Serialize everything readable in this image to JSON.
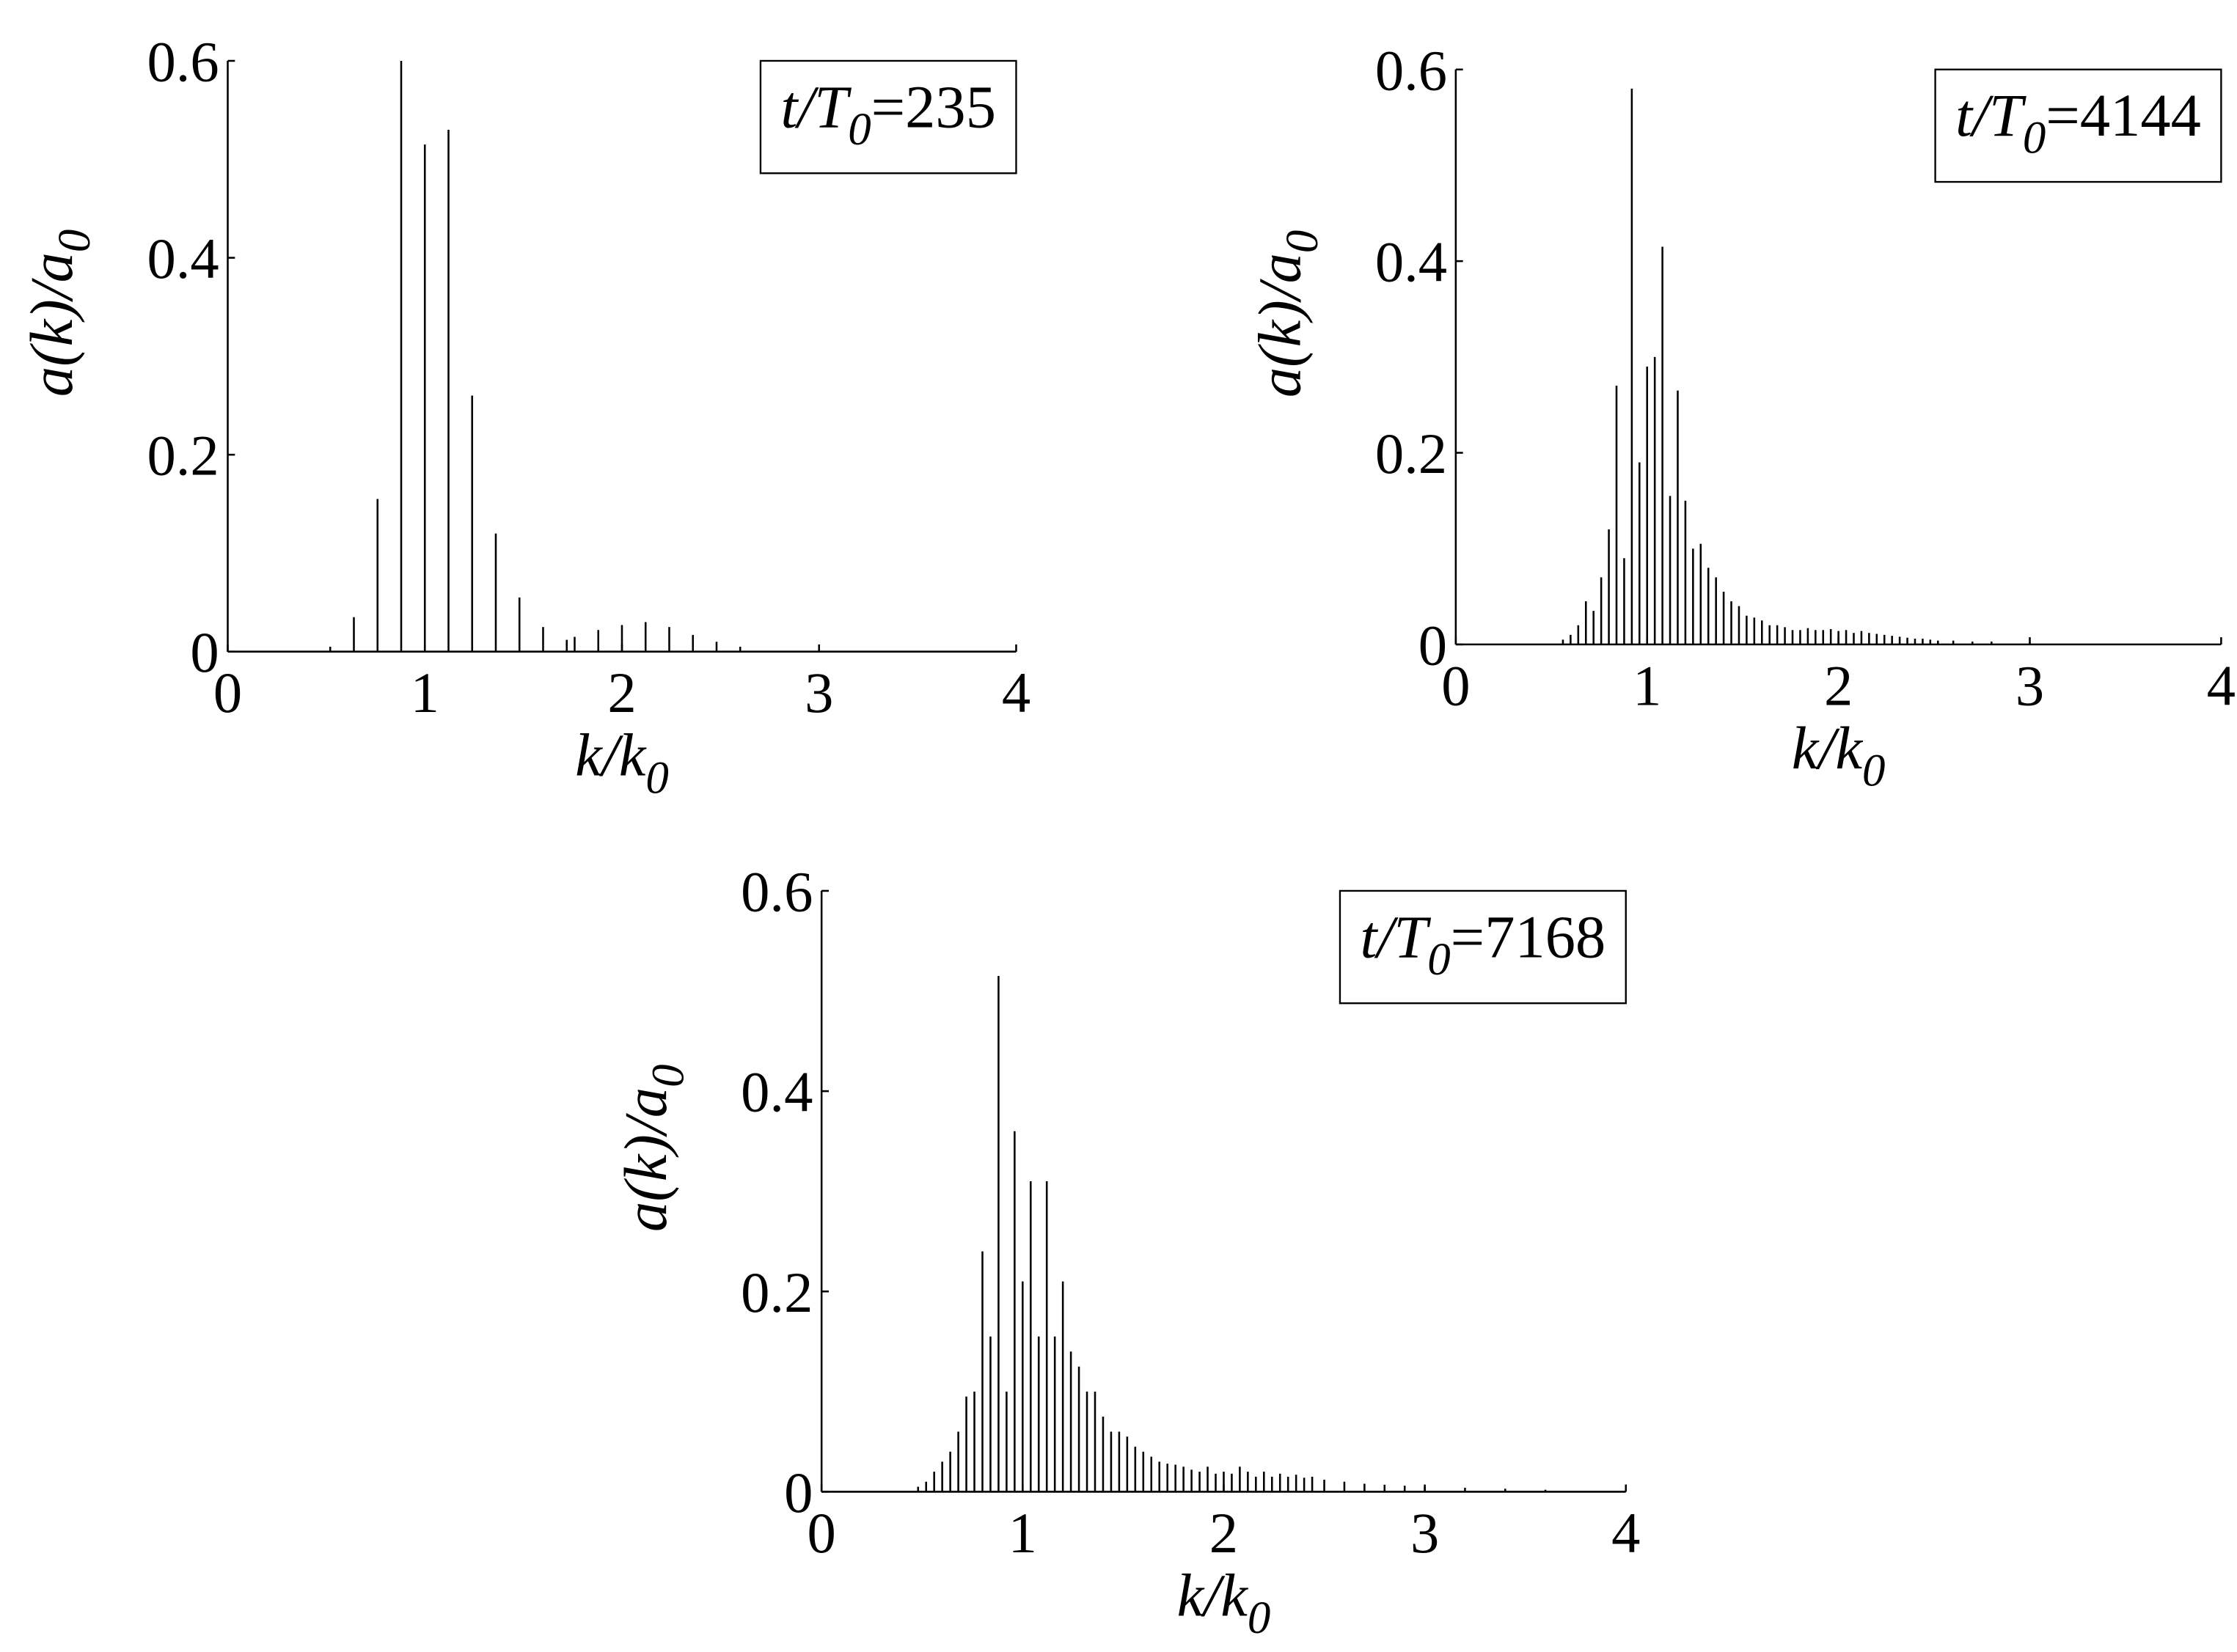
{
  "chart_data": [
    {
      "type": "stem",
      "annotation": [
        "t/T",
        "0",
        "=235"
      ],
      "xlabel": [
        "k/k",
        "0"
      ],
      "ylabel": [
        "a(k)/a",
        "0"
      ],
      "x": [
        0.52,
        0.64,
        0.76,
        0.88,
        1.0,
        1.12,
        1.24,
        1.36,
        1.48,
        1.6,
        1.72,
        1.76,
        1.88,
        2.0,
        2.12,
        2.24,
        2.36,
        2.48,
        2.6,
        3.0
      ],
      "values": [
        0.005,
        0.035,
        0.155,
        0.6,
        0.515,
        0.53,
        0.26,
        0.12,
        0.055,
        0.025,
        0.012,
        0.015,
        0.022,
        0.027,
        0.03,
        0.025,
        0.017,
        0.01,
        0.005,
        0.003
      ],
      "color": "#000000",
      "xlim": [
        0,
        4
      ],
      "ylim": [
        0,
        0.6
      ],
      "xticks": [
        0,
        1,
        2,
        3,
        4
      ],
      "yticks": [
        0,
        0.2,
        0.4,
        0.6
      ]
    },
    {
      "type": "stem",
      "annotation": [
        "t/T",
        "0",
        "=4144"
      ],
      "xlabel": [
        "k/k",
        "0"
      ],
      "ylabel": [
        "a(k)/a",
        "0"
      ],
      "x": [
        0.56,
        0.6,
        0.64,
        0.68,
        0.72,
        0.76,
        0.8,
        0.84,
        0.88,
        0.92,
        0.96,
        1.0,
        1.04,
        1.08,
        1.12,
        1.16,
        1.2,
        1.24,
        1.28,
        1.32,
        1.36,
        1.4,
        1.44,
        1.48,
        1.52,
        1.56,
        1.6,
        1.64,
        1.68,
        1.72,
        1.76,
        1.8,
        1.84,
        1.88,
        1.92,
        1.96,
        2.0,
        2.04,
        2.08,
        2.12,
        2.16,
        2.2,
        2.24,
        2.28,
        2.32,
        2.36,
        2.4,
        2.44,
        2.48,
        2.52,
        2.6,
        2.7,
        2.8,
        3.0
      ],
      "values": [
        0.005,
        0.01,
        0.02,
        0.045,
        0.035,
        0.07,
        0.12,
        0.27,
        0.09,
        0.58,
        0.19,
        0.29,
        0.3,
        0.415,
        0.155,
        0.265,
        0.15,
        0.1,
        0.105,
        0.08,
        0.07,
        0.055,
        0.045,
        0.04,
        0.03,
        0.028,
        0.025,
        0.02,
        0.02,
        0.018,
        0.015,
        0.015,
        0.017,
        0.015,
        0.015,
        0.016,
        0.014,
        0.015,
        0.012,
        0.014,
        0.012,
        0.011,
        0.01,
        0.009,
        0.008,
        0.007,
        0.006,
        0.006,
        0.005,
        0.004,
        0.004,
        0.003,
        0.003,
        0.002
      ],
      "color": "#000000",
      "xlim": [
        0,
        4
      ],
      "ylim": [
        0,
        0.6
      ],
      "xticks": [
        0,
        1,
        2,
        3,
        4
      ],
      "yticks": [
        0,
        0.2,
        0.4,
        0.6
      ]
    },
    {
      "type": "stem",
      "annotation": [
        "t/T",
        "0",
        "=7168"
      ],
      "xlabel": [
        "k/k",
        "0"
      ],
      "ylabel": [
        "a(k)/a",
        "0"
      ],
      "x": [
        0.48,
        0.52,
        0.56,
        0.6,
        0.64,
        0.68,
        0.72,
        0.76,
        0.8,
        0.84,
        0.88,
        0.92,
        0.96,
        1.0,
        1.04,
        1.08,
        1.12,
        1.16,
        1.2,
        1.24,
        1.28,
        1.32,
        1.36,
        1.4,
        1.44,
        1.48,
        1.52,
        1.56,
        1.6,
        1.64,
        1.68,
        1.72,
        1.76,
        1.8,
        1.84,
        1.88,
        1.92,
        1.96,
        2.0,
        2.04,
        2.08,
        2.12,
        2.16,
        2.2,
        2.24,
        2.28,
        2.32,
        2.36,
        2.4,
        2.44,
        2.5,
        2.6,
        2.7,
        2.8,
        2.9,
        3.0,
        3.2,
        3.4,
        3.6
      ],
      "values": [
        0.005,
        0.01,
        0.02,
        0.03,
        0.04,
        0.06,
        0.095,
        0.1,
        0.24,
        0.155,
        0.515,
        0.1,
        0.36,
        0.21,
        0.31,
        0.155,
        0.31,
        0.155,
        0.21,
        0.14,
        0.125,
        0.1,
        0.1,
        0.075,
        0.06,
        0.06,
        0.055,
        0.045,
        0.04,
        0.035,
        0.03,
        0.028,
        0.027,
        0.025,
        0.022,
        0.02,
        0.025,
        0.018,
        0.02,
        0.018,
        0.025,
        0.02,
        0.015,
        0.02,
        0.015,
        0.018,
        0.015,
        0.017,
        0.014,
        0.015,
        0.012,
        0.01,
        0.008,
        0.007,
        0.006,
        0.005,
        0.004,
        0.003,
        0.002
      ],
      "color": "#000000",
      "xlim": [
        0,
        4
      ],
      "ylim": [
        0,
        0.6
      ],
      "xticks": [
        0,
        1,
        2,
        3,
        4
      ],
      "yticks": [
        0,
        0.2,
        0.4,
        0.6
      ]
    }
  ]
}
